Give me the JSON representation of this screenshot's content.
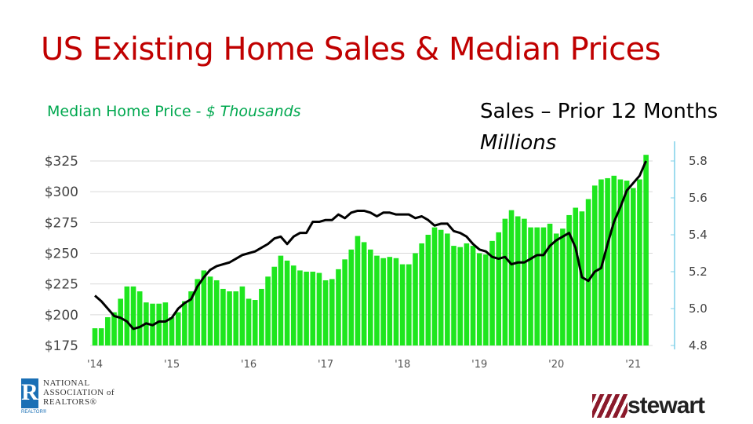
{
  "title": "US Existing Home Sales & Median Prices",
  "left_label": {
    "text": "Median Home Price - ",
    "italic": "$ Thousands"
  },
  "right_label": {
    "text": "Sales – Prior 12 Months",
    "units": "Millions"
  },
  "logos": {
    "nar": {
      "mark": "R",
      "line1": "NATIONAL",
      "line2": "ASSOCIATION of",
      "line3": "REALTORS®",
      "small": "REALTOR®"
    },
    "stewart": "stewart"
  },
  "colors": {
    "title": "#c00000",
    "bars": "#1ee61e",
    "line": "#000000",
    "left_label": "#00a84f",
    "right_axis": "#7fd0e8"
  },
  "chart_data": {
    "type": "bar+line",
    "title": "US Existing Home Sales & Median Prices",
    "x_tick_labels": [
      "'14",
      "'15",
      "'16",
      "'17",
      "'18",
      "'19",
      "'20",
      "'21"
    ],
    "x_start": "2014-01",
    "x_end": "2021-03",
    "frequency": "monthly",
    "left_axis": {
      "label": "Median Home Price - $ Thousands",
      "ticks": [
        "$175",
        "$200",
        "$225",
        "$250",
        "$275",
        "$300",
        "$325"
      ],
      "range": [
        175,
        325
      ]
    },
    "right_axis": {
      "label": "Sales – Prior 12 Months Millions",
      "ticks": [
        "4.8",
        "5.0",
        "5.2",
        "5.4",
        "5.6",
        "5.8"
      ],
      "range": [
        4.8,
        5.8
      ]
    },
    "grid": true,
    "series": [
      {
        "type": "bar",
        "axis": "left",
        "color": "#1ee61e",
        "values": [
          189,
          189,
          198,
          202,
          213,
          223,
          223,
          219,
          210,
          209,
          209,
          210,
          198,
          202,
          211,
          219,
          229,
          236,
          231,
          228,
          221,
          219,
          219,
          223,
          213,
          212,
          221,
          231,
          239,
          248,
          244,
          240,
          236,
          235,
          235,
          234,
          228,
          229,
          237,
          245,
          253,
          264,
          259,
          253,
          248,
          246,
          247,
          246,
          241,
          241,
          250,
          258,
          265,
          271,
          269,
          266,
          256,
          255,
          258,
          256,
          250,
          249,
          260,
          267,
          278,
          285,
          280,
          278,
          271,
          271,
          271,
          274,
          266,
          270,
          281,
          287,
          284,
          294,
          305,
          310,
          311,
          313,
          310,
          309,
          303,
          310,
          330
        ]
      },
      {
        "type": "line",
        "axis": "right",
        "color": "#000000",
        "values": [
          5.07,
          5.04,
          5.0,
          4.96,
          4.95,
          4.93,
          4.89,
          4.9,
          4.92,
          4.91,
          4.93,
          4.93,
          4.95,
          5.0,
          5.03,
          5.05,
          5.12,
          5.17,
          5.21,
          5.23,
          5.24,
          5.25,
          5.27,
          5.29,
          5.3,
          5.31,
          5.33,
          5.35,
          5.38,
          5.39,
          5.35,
          5.39,
          5.41,
          5.41,
          5.47,
          5.47,
          5.48,
          5.48,
          5.51,
          5.49,
          5.52,
          5.53,
          5.53,
          5.52,
          5.5,
          5.52,
          5.52,
          5.51,
          5.51,
          5.51,
          5.49,
          5.5,
          5.48,
          5.45,
          5.46,
          5.46,
          5.42,
          5.41,
          5.39,
          5.35,
          5.32,
          5.31,
          5.28,
          5.27,
          5.28,
          5.24,
          5.25,
          5.25,
          5.27,
          5.29,
          5.29,
          5.34,
          5.37,
          5.39,
          5.41,
          5.33,
          5.17,
          5.15,
          5.2,
          5.22,
          5.35,
          5.47,
          5.55,
          5.64,
          5.68,
          5.72,
          5.8
        ]
      }
    ]
  }
}
